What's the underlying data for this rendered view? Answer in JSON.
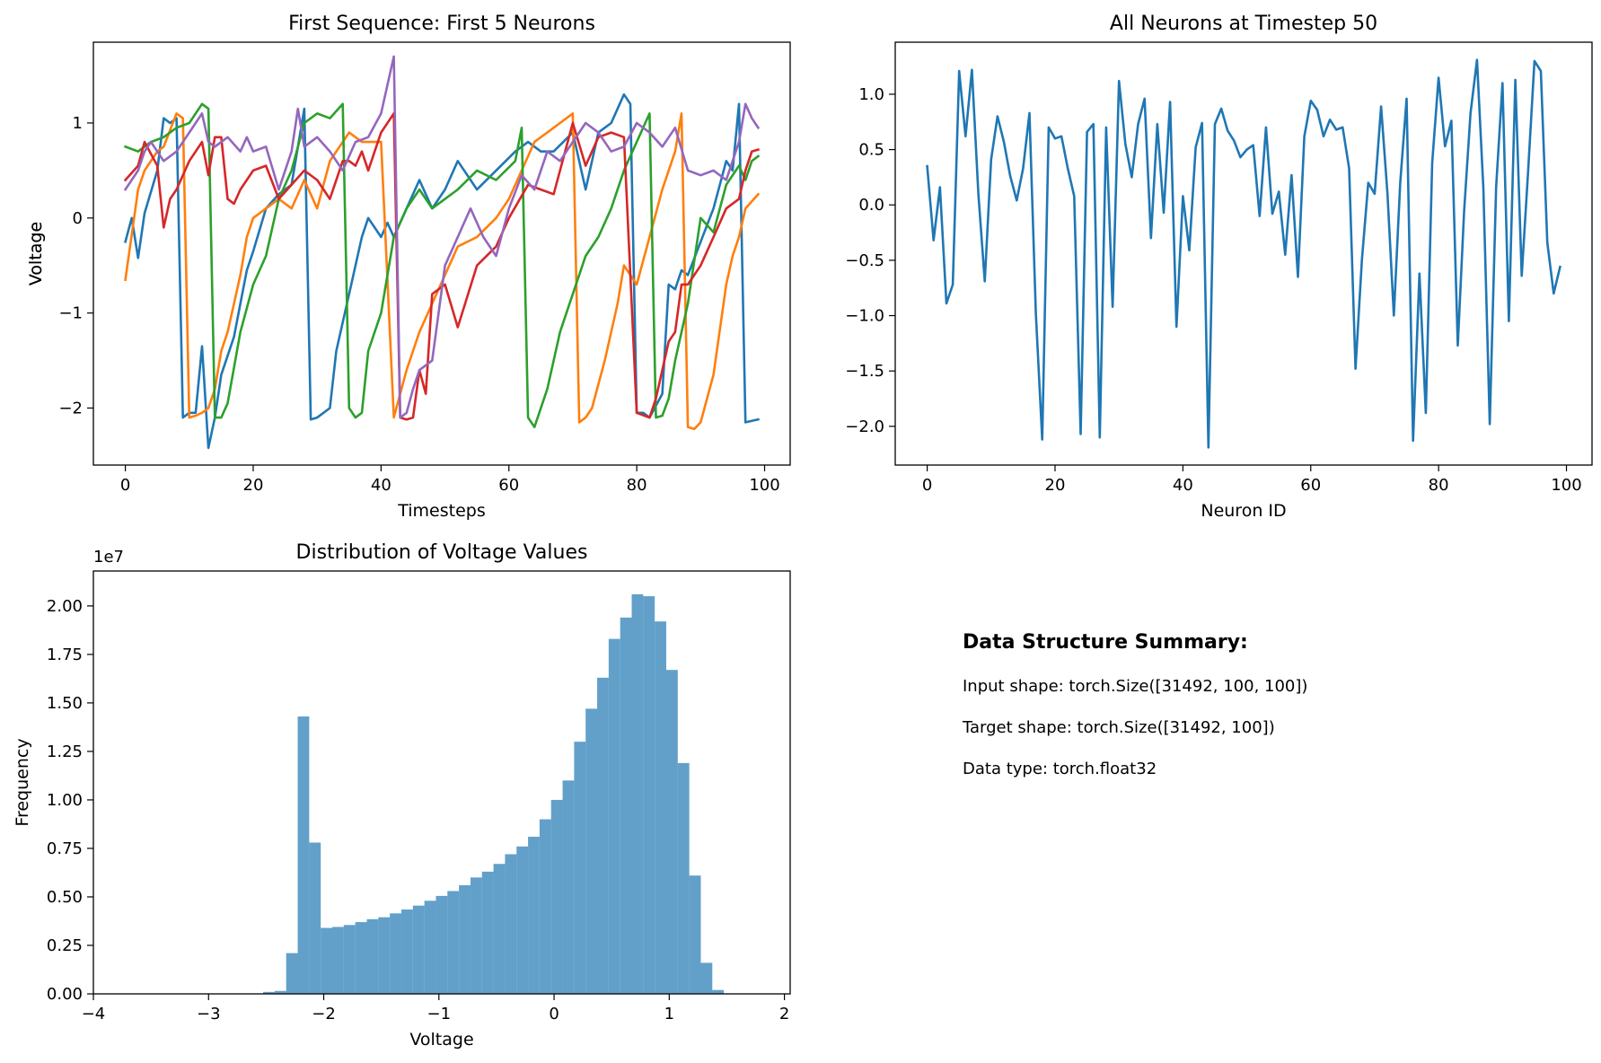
{
  "chart_data": [
    {
      "type": "line",
      "title": "First Sequence: First 5 Neurons",
      "xlabel": "Timesteps",
      "ylabel": "Voltage",
      "xlim": [
        -5,
        104
      ],
      "ylim": [
        -2.6,
        1.85
      ],
      "xticks": [
        0,
        20,
        40,
        60,
        80,
        100
      ],
      "xtick_labels": [
        "0",
        "20",
        "40",
        "60",
        "80",
        "100"
      ],
      "yticks": [
        -2,
        -1,
        0,
        1
      ],
      "ytick_labels": [
        "−2",
        "−1",
        "0",
        "1"
      ],
      "grid": false,
      "legend": false,
      "series": [
        {
          "color": "#1f77b4",
          "x": [
            0,
            1,
            2,
            3,
            5,
            6,
            7,
            8,
            9,
            10,
            11,
            12,
            13,
            14,
            15,
            16,
            17,
            18,
            19,
            20,
            22,
            24,
            26,
            28,
            29,
            30,
            31,
            32,
            33,
            35,
            37,
            38,
            40,
            41,
            42,
            44,
            46,
            48,
            50,
            52,
            55,
            58,
            61,
            63,
            65,
            67,
            70,
            72,
            74,
            76,
            78,
            79,
            80,
            81,
            82,
            84,
            85,
            86,
            87,
            88,
            90,
            92,
            94,
            95,
            96,
            97,
            99
          ],
          "values": [
            -0.25,
            0,
            -0.42,
            0.05,
            0.5,
            1.05,
            1.0,
            1.05,
            -2.1,
            -2.05,
            -2.05,
            -1.35,
            -2.42,
            -2.1,
            -1.65,
            -1.45,
            -1.25,
            -0.9,
            -0.55,
            -0.35,
            0.1,
            0.25,
            0.35,
            1.15,
            -2.12,
            -2.1,
            -2.05,
            -2.0,
            -1.4,
            -0.8,
            -0.2,
            0,
            -0.2,
            -0.05,
            -0.2,
            0.1,
            0.4,
            0.1,
            0.3,
            0.6,
            0.3,
            0.5,
            0.7,
            0.8,
            0.7,
            0.7,
            0.9,
            0.3,
            0.9,
            1.0,
            1.3,
            1.2,
            -2.05,
            -2.05,
            -2.1,
            -1.85,
            -0.7,
            -0.75,
            -0.55,
            -0.6,
            -0.25,
            0.1,
            0.6,
            0.5,
            1.2,
            -2.15,
            -2.12
          ]
        },
        {
          "color": "#ff7f0e",
          "x": [
            0,
            2,
            3,
            5,
            6,
            8,
            9,
            10,
            11,
            12,
            13,
            14,
            15,
            16,
            17,
            18,
            19,
            20,
            22,
            24,
            26,
            28,
            30,
            32,
            35,
            37,
            40,
            42,
            44,
            46,
            48,
            50,
            52,
            55,
            58,
            60,
            62,
            64,
            66,
            68,
            70,
            71,
            72,
            73,
            75,
            77,
            78,
            80,
            82,
            84,
            86,
            87,
            88,
            89,
            90,
            92,
            94,
            95,
            96,
            97,
            99
          ],
          "values": [
            -0.65,
            0.3,
            0.5,
            0.7,
            0.75,
            1.1,
            1.05,
            -2.1,
            -2.08,
            -2.05,
            -2.0,
            -1.8,
            -1.4,
            -1.2,
            -0.9,
            -0.6,
            -0.2,
            0,
            0.1,
            0.2,
            0.1,
            0.4,
            0.1,
            0.6,
            0.9,
            0.8,
            0.8,
            -2.1,
            -1.6,
            -1.2,
            -0.9,
            -0.6,
            -0.3,
            -0.2,
            0,
            0.2,
            0.5,
            0.8,
            0.9,
            1.0,
            1.1,
            -2.15,
            -2.1,
            -2.0,
            -1.5,
            -0.9,
            -0.5,
            -0.7,
            -0.2,
            0.3,
            0.7,
            1.1,
            -2.2,
            -2.22,
            -2.15,
            -1.65,
            -0.7,
            -0.4,
            -0.2,
            0.1,
            0.25
          ]
        },
        {
          "color": "#2ca02c",
          "x": [
            0,
            2,
            4,
            6,
            8,
            10,
            12,
            13,
            14,
            15,
            16,
            18,
            20,
            22,
            24,
            26,
            28,
            30,
            32,
            34,
            35,
            36,
            37,
            38,
            40,
            42,
            44,
            46,
            48,
            50,
            52,
            55,
            58,
            61,
            62,
            63,
            64,
            66,
            68,
            70,
            72,
            74,
            76,
            78,
            80,
            82,
            83,
            84,
            85,
            86,
            88,
            90,
            92,
            94,
            96,
            97,
            98,
            99
          ],
          "values": [
            0.75,
            0.7,
            0.8,
            0.85,
            0.95,
            1.0,
            1.2,
            1.15,
            -2.1,
            -2.1,
            -1.95,
            -1.2,
            -0.7,
            -0.4,
            0.2,
            0.5,
            1.0,
            1.1,
            1.05,
            1.2,
            -2.0,
            -2.1,
            -2.05,
            -1.4,
            -1.0,
            -0.2,
            0.1,
            0.3,
            0.1,
            0.2,
            0.3,
            0.5,
            0.4,
            0.6,
            0.95,
            -2.1,
            -2.2,
            -1.8,
            -1.2,
            -0.8,
            -0.4,
            -0.2,
            0.1,
            0.5,
            0.8,
            1.1,
            -2.1,
            -2.08,
            -1.9,
            -1.5,
            -0.9,
            0,
            -0.15,
            0.35,
            0.55,
            0.4,
            0.6,
            0.65
          ]
        },
        {
          "color": "#d62728",
          "x": [
            0,
            2,
            3,
            5,
            6,
            7,
            8,
            10,
            12,
            13,
            14,
            15,
            16,
            17,
            18,
            20,
            22,
            24,
            26,
            28,
            30,
            32,
            34,
            35,
            36,
            37,
            38,
            40,
            42,
            43,
            44,
            45,
            46,
            47,
            48,
            50,
            52,
            55,
            58,
            60,
            63,
            65,
            67,
            70,
            72,
            74,
            76,
            78,
            80,
            82,
            83,
            84,
            85,
            86,
            87,
            88,
            90,
            92,
            94,
            96,
            97,
            98,
            99
          ],
          "values": [
            0.4,
            0.55,
            0.8,
            0.55,
            -0.1,
            0.2,
            0.3,
            0.6,
            0.8,
            0.45,
            0.85,
            0.85,
            0.2,
            0.15,
            0.3,
            0.5,
            0.55,
            0.2,
            0.35,
            0.5,
            0.4,
            0.2,
            0.6,
            0.6,
            0.55,
            0.7,
            0.5,
            0.9,
            1.1,
            -2.1,
            -2.12,
            -2.1,
            -1.6,
            -1.85,
            -0.8,
            -0.7,
            -1.15,
            -0.5,
            -0.3,
            0,
            0.35,
            0.3,
            0.25,
            1.0,
            0.55,
            0.85,
            0.9,
            0.85,
            -2.05,
            -2.1,
            -1.9,
            -1.6,
            -1.3,
            -1.2,
            -0.7,
            -0.7,
            -0.5,
            -0.2,
            0.1,
            0.2,
            0.5,
            0.7,
            0.72
          ]
        },
        {
          "color": "#9467bd",
          "x": [
            0,
            2,
            3,
            4,
            5,
            6,
            8,
            10,
            12,
            13,
            14,
            16,
            18,
            19,
            20,
            22,
            24,
            26,
            27,
            28,
            30,
            32,
            34,
            36,
            38,
            40,
            42,
            43,
            44,
            45,
            46,
            48,
            50,
            52,
            54,
            56,
            58,
            60,
            62,
            64,
            66,
            68,
            70,
            72,
            74,
            76,
            78,
            80,
            82,
            84,
            86,
            88,
            90,
            92,
            94,
            96,
            97,
            98,
            99
          ],
          "values": [
            0.3,
            0.5,
            0.7,
            0.8,
            0.7,
            0.6,
            0.7,
            0.9,
            1.1,
            0.8,
            0.75,
            0.85,
            0.7,
            0.85,
            0.7,
            0.75,
            0.3,
            0.7,
            1.15,
            0.75,
            0.85,
            0.7,
            0.5,
            0.8,
            0.85,
            1.1,
            1.7,
            -2.1,
            -2.05,
            -1.8,
            -1.6,
            -1.5,
            -0.5,
            -0.2,
            0.1,
            -0.2,
            -0.4,
            0.1,
            0.45,
            0.3,
            0.7,
            0.6,
            0.8,
            1.0,
            0.9,
            0.7,
            0.75,
            1.0,
            0.9,
            0.75,
            0.95,
            0.5,
            0.45,
            0.5,
            0.4,
            0.8,
            1.2,
            1.05,
            0.95
          ]
        }
      ]
    },
    {
      "type": "line",
      "title": "All Neurons at Timestep 50",
      "xlabel": "Neuron ID",
      "ylabel": "Voltage",
      "xlim": [
        -5,
        104
      ],
      "ylim": [
        -2.35,
        1.47
      ],
      "xticks": [
        0,
        20,
        40,
        60,
        80,
        100
      ],
      "xtick_labels": [
        "0",
        "20",
        "40",
        "60",
        "80",
        "100"
      ],
      "yticks": [
        -2.0,
        -1.5,
        -1.0,
        -0.5,
        0.0,
        0.5,
        1.0
      ],
      "ytick_labels": [
        "−2.0",
        "−1.5",
        "−1.0",
        "−0.5",
        "0.0",
        "0.5",
        "1.0"
      ],
      "grid": false,
      "legend": false,
      "series": [
        {
          "color": "#1f77b4",
          "values": [
            0.35,
            -0.32,
            0.16,
            -0.89,
            -0.72,
            1.21,
            0.62,
            1.22,
            0.1,
            -0.69,
            0.41,
            0.8,
            0.57,
            0.26,
            0.04,
            0.33,
            0.83,
            -0.98,
            -2.12,
            0.7,
            0.6,
            0.62,
            0.33,
            0.08,
            -2.07,
            0.66,
            0.73,
            -2.1,
            0.7,
            -0.92,
            1.12,
            0.55,
            0.25,
            0.73,
            0.96,
            -0.3,
            0.73,
            -0.07,
            0.93,
            -1.1,
            0.08,
            -0.41,
            0.52,
            0.74,
            -2.19,
            0.73,
            0.87,
            0.67,
            0.58,
            0.43,
            0.5,
            0.54,
            -0.1,
            0.7,
            -0.08,
            0.12,
            -0.45,
            0.27,
            -0.65,
            0.62,
            0.94,
            0.86,
            0.62,
            0.77,
            0.68,
            0.7,
            0.33,
            -1.48,
            -0.5,
            0.2,
            0.1,
            0.89,
            0.1,
            -1.0,
            0.2,
            0.96,
            -2.13,
            -0.62,
            -1.88,
            0.38,
            1.15,
            0.53,
            0.76,
            -1.27,
            -0.05,
            0.83,
            1.31,
            0.15,
            -1.98,
            0.16,
            1.1,
            -1.05,
            1.13,
            -0.64,
            0.3,
            1.3,
            1.21,
            -0.34,
            -0.8,
            -0.56
          ]
        }
      ]
    },
    {
      "type": "histogram",
      "title": "Distribution of Voltage Values",
      "xlabel": "Voltage",
      "ylabel": "Frequency",
      "y_offset_label": "1e7",
      "xlim": [
        -4.0,
        2.05
      ],
      "ylim": [
        0,
        2.18
      ],
      "xticks": [
        -4,
        -3,
        -2,
        -1,
        0,
        1,
        2
      ],
      "xtick_labels": [
        "−4",
        "−3",
        "−2",
        "−1",
        "0",
        "1",
        "2"
      ],
      "yticks": [
        0.0,
        0.25,
        0.5,
        0.75,
        1.0,
        1.25,
        1.5,
        1.75,
        2.0
      ],
      "ytick_labels": [
        "0.00",
        "0.25",
        "0.50",
        "0.75",
        "1.00",
        "1.25",
        "1.50",
        "1.75",
        "2.00"
      ],
      "bar_color": "#1f77b4",
      "bar_opacity": 0.7,
      "bins": [
        -2.526,
        -2.426,
        -2.326,
        -2.226,
        -2.126,
        -2.026,
        -1.926,
        -1.826,
        -1.726,
        -1.626,
        -1.526,
        -1.426,
        -1.326,
        -1.226,
        -1.126,
        -1.026,
        -0.926,
        -0.826,
        -0.726,
        -0.626,
        -0.526,
        -0.426,
        -0.326,
        -0.226,
        -0.126,
        -0.026,
        0.074,
        0.174,
        0.274,
        0.374,
        0.474,
        0.574,
        0.674,
        0.774,
        0.874,
        0.974,
        1.074,
        1.174,
        1.274,
        1.374,
        1.474,
        1.574
      ],
      "counts": [
        0.01,
        0.015,
        0.21,
        1.43,
        0.78,
        0.34,
        0.345,
        0.355,
        0.37,
        0.385,
        0.395,
        0.415,
        0.435,
        0.455,
        0.48,
        0.505,
        0.53,
        0.56,
        0.6,
        0.63,
        0.67,
        0.72,
        0.76,
        0.81,
        0.9,
        1.0,
        1.1,
        1.3,
        1.47,
        1.63,
        1.83,
        1.94,
        2.06,
        2.05,
        1.92,
        1.67,
        1.19,
        0.61,
        0.16,
        0.02,
        0.0
      ]
    }
  ],
  "summary": {
    "title": "Data Structure Summary:",
    "input_shape": "Input shape: torch.Size([31492, 100, 100])",
    "target_shape": "Target shape: torch.Size([31492, 100])",
    "data_type": "Data type: torch.float32"
  }
}
